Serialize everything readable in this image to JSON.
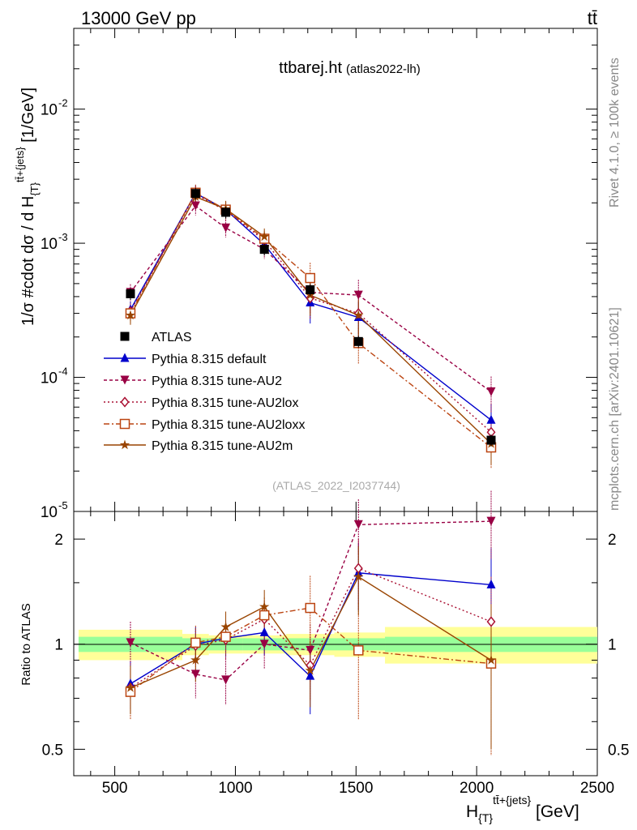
{
  "header": {
    "left": "13000 GeV pp",
    "right": "tt̄"
  },
  "side_labels": {
    "rivet": "Rivet 4.1.0, ≥ 100k events",
    "mcplots": "mcplots.cern.ch [arXiv:2401.10621]"
  },
  "chart_data": {
    "type": "line",
    "title": "ttbarej.ht",
    "subtitle": "(atlas2022-lh)",
    "watermark": "(ATLAS_2022_I2037744)",
    "xlabel": "H_{T}^{tt̄+{jets}} [GeV]",
    "ylabel": "1/σ #cdot dσ / d H_{T}^{tt̄+{jets}} [1/GeV]",
    "ratio_ylabel": "Ratio to ATLAS",
    "xlim": [
      330,
      2500
    ],
    "ylim": [
      1e-05,
      0.04
    ],
    "ratio_ylim": [
      0.42,
      2.4
    ],
    "x_ticks": [
      500,
      1000,
      1500,
      2000,
      2500
    ],
    "y_ticks": [
      {
        "value": 0.01,
        "label": "10",
        "exp": "-2"
      },
      {
        "value": 0.001,
        "label": "10",
        "exp": "-3"
      },
      {
        "value": 0.0001,
        "label": "10",
        "exp": "-4"
      },
      {
        "value": 1e-05,
        "label": "10",
        "exp": "-5"
      }
    ],
    "ratio_ticks": [
      {
        "value": 0.5,
        "label": "0.5"
      },
      {
        "value": 1,
        "label": "1"
      },
      {
        "value": 2,
        "label": "2"
      }
    ],
    "x": [
      565,
      835,
      960,
      1120,
      1310,
      1510,
      2060
    ],
    "bin_edges": [
      350,
      780,
      890,
      1030,
      1210,
      1410,
      1620,
      2500
    ],
    "data": {
      "name": "ATLAS",
      "values": [
        0.00042,
        0.00235,
        0.0017,
        0.0009,
        0.00045,
        0.000185,
        3.4e-05
      ],
      "band_inner": [
        0.05,
        0.04,
        0.04,
        0.04,
        0.04,
        0.04,
        0.05
      ],
      "band_outer": [
        0.1,
        0.07,
        0.06,
        0.06,
        0.07,
        0.08,
        0.12
      ]
    },
    "series": [
      {
        "name": "Pythia 8.315 default",
        "color": "#0000cc",
        "dash": "",
        "marker": "triangle-up",
        "values": [
          0.00032,
          0.00236,
          0.00178,
          0.00098,
          0.00036,
          0.00028,
          4.8e-05
        ],
        "ratio": [
          0.77,
          1.0,
          1.04,
          1.08,
          0.81,
          1.6,
          1.48
        ],
        "ratio_err": [
          0.12,
          0.12,
          0.12,
          0.15,
          0.18,
          0.35,
          0.4
        ]
      },
      {
        "name": "Pythia 8.315 tune-AU2",
        "color": "#990044",
        "dash": "4,3",
        "marker": "triangle-down",
        "values": [
          0.00043,
          0.0019,
          0.0013,
          0.0009,
          0.00043,
          0.00041,
          7.8e-05
        ],
        "ratio": [
          1.01,
          0.82,
          0.79,
          1.0,
          0.96,
          2.2,
          2.25
        ],
        "ratio_err": [
          0.15,
          0.12,
          0.12,
          0.15,
          0.18,
          0.4,
          0.5
        ]
      },
      {
        "name": "Pythia 8.315 tune-AU2lox",
        "color": "#aa1133",
        "dash": "2,3",
        "marker": "diamond",
        "values": [
          0.00031,
          0.00232,
          0.00175,
          0.00105,
          0.00039,
          0.0003,
          3.9e-05
        ],
        "ratio": [
          0.75,
          0.99,
          1.03,
          1.18,
          0.87,
          1.65,
          1.16
        ],
        "ratio_err": [
          0.12,
          0.12,
          0.12,
          0.15,
          0.18,
          0.35,
          0.4
        ]
      },
      {
        "name": "Pythia 8.315 tune-AU2loxx",
        "color": "#bb4411",
        "dash": "7,3,2,3",
        "marker": "square-open",
        "values": [
          0.0003,
          0.00238,
          0.00178,
          0.00108,
          0.00055,
          0.00018,
          3e-05
        ],
        "ratio": [
          0.73,
          1.01,
          1.05,
          1.21,
          1.27,
          0.96,
          0.88
        ],
        "ratio_err": [
          0.12,
          0.12,
          0.12,
          0.15,
          0.3,
          0.35,
          0.4
        ]
      },
      {
        "name": "Pythia 8.315 tune-AU2m",
        "color": "#994400",
        "dash": "",
        "marker": "star",
        "values": [
          0.00029,
          0.00222,
          0.0018,
          0.00112,
          0.00041,
          0.00029,
          3.2e-05
        ],
        "ratio": [
          0.75,
          0.9,
          1.12,
          1.28,
          0.84,
          1.56,
          0.9
        ],
        "ratio_err": [
          0.12,
          0.12,
          0.12,
          0.15,
          0.18,
          0.35,
          0.4
        ]
      }
    ]
  }
}
